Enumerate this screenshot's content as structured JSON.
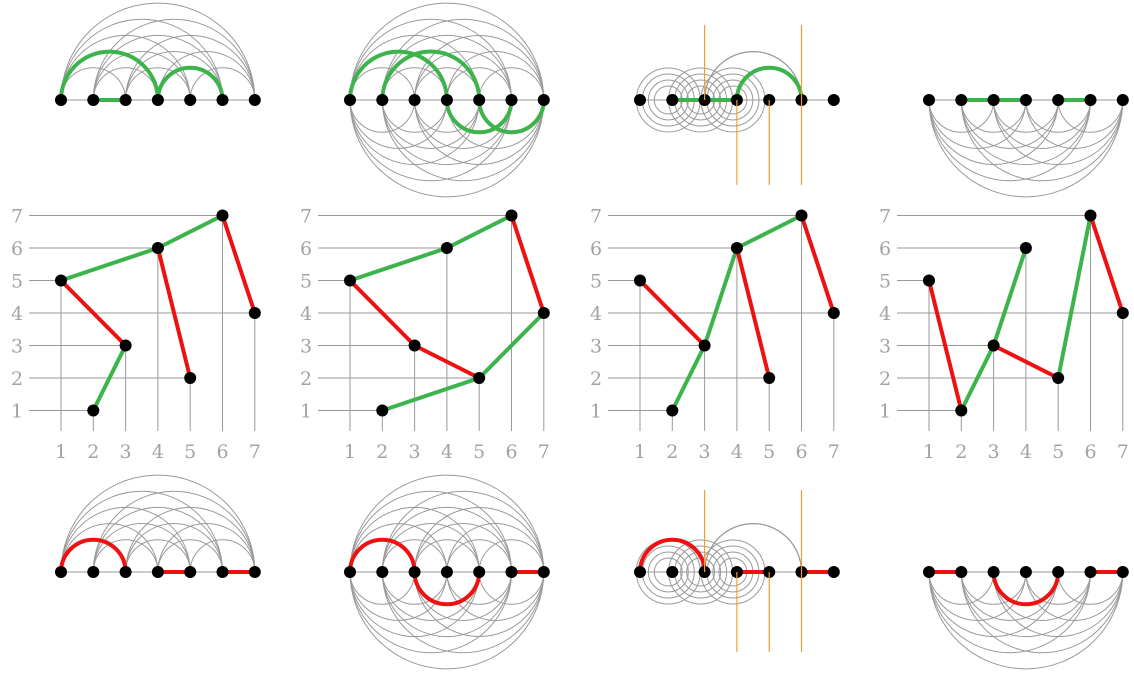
{
  "colors": {
    "green": "#3cb44b",
    "red": "#ee1111",
    "grey": "#9a9a9a",
    "orange": "#f0a030",
    "vertex": "#000000",
    "label": "#a3a3a3"
  },
  "axis_ticks": [
    "1",
    "2",
    "3",
    "4",
    "5",
    "6",
    "7"
  ],
  "panels": [
    {
      "points": [
        [
          1,
          5
        ],
        [
          2,
          1
        ],
        [
          3,
          3
        ],
        [
          4,
          6
        ],
        [
          5,
          2
        ],
        [
          6,
          7
        ],
        [
          7,
          4
        ]
      ],
      "green_edges": [
        [
          2,
          3
        ],
        [
          1,
          4
        ],
        [
          4,
          6
        ]
      ],
      "red_edges": [
        [
          1,
          3
        ],
        [
          4,
          5
        ],
        [
          6,
          7
        ]
      ]
    },
    {
      "points": [
        [
          1,
          5
        ],
        [
          2,
          1
        ],
        [
          3,
          3
        ],
        [
          4,
          6
        ],
        [
          5,
          2
        ],
        [
          6,
          7
        ],
        [
          7,
          4
        ]
      ],
      "green_edges": [
        [
          1,
          4
        ],
        [
          4,
          6
        ],
        [
          2,
          5
        ],
        [
          5,
          7
        ]
      ],
      "red_edges": [
        [
          1,
          3
        ],
        [
          3,
          5
        ],
        [
          6,
          7
        ]
      ]
    },
    {
      "points": [
        [
          1,
          5
        ],
        [
          2,
          1
        ],
        [
          3,
          3
        ],
        [
          4,
          6
        ],
        [
          5,
          2
        ],
        [
          6,
          7
        ],
        [
          7,
          4
        ]
      ],
      "green_edges": [
        [
          2,
          3
        ],
        [
          3,
          4
        ],
        [
          4,
          6
        ]
      ],
      "red_edges": [
        [
          1,
          3
        ],
        [
          4,
          5
        ],
        [
          6,
          7
        ]
      ]
    },
    {
      "points": [
        [
          1,
          5
        ],
        [
          2,
          1
        ],
        [
          3,
          3
        ],
        [
          4,
          6
        ],
        [
          5,
          2
        ],
        [
          6,
          7
        ],
        [
          7,
          4
        ]
      ],
      "green_edges": [
        [
          2,
          3
        ],
        [
          3,
          4
        ],
        [
          5,
          6
        ]
      ],
      "red_edges": [
        [
          1,
          2
        ],
        [
          3,
          5
        ],
        [
          6,
          7
        ]
      ]
    }
  ]
}
